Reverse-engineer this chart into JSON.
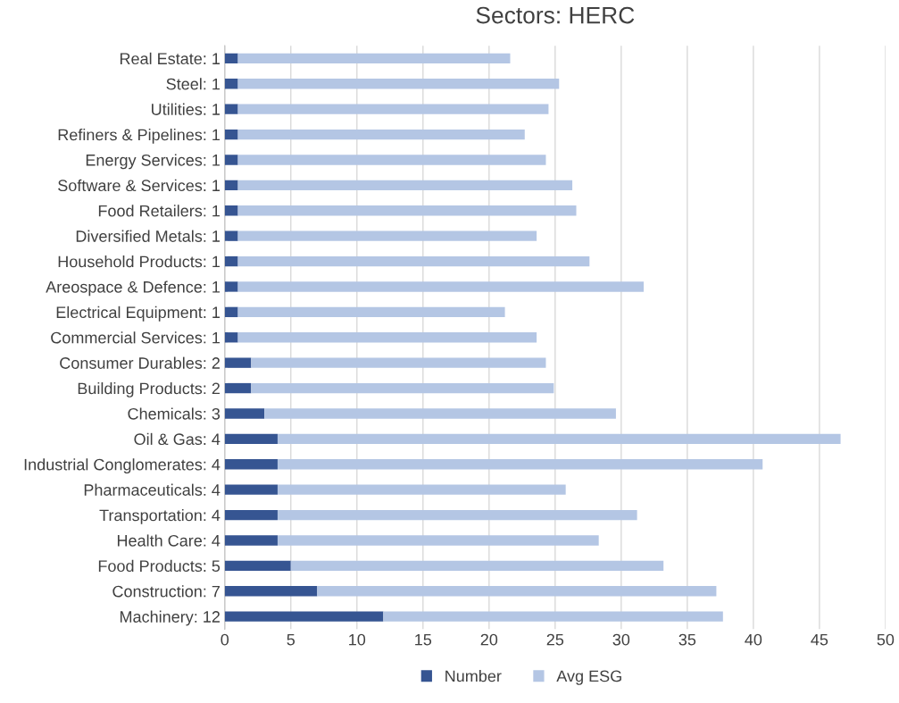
{
  "chart_data": {
    "type": "bar",
    "title": "Sectors: HERC",
    "orientation": "horizontal",
    "stacked": true,
    "categories": [
      "Real Estate: 1",
      "Steel: 1",
      "Utilities: 1",
      "Refiners & Pipelines: 1",
      "Energy Services: 1",
      "Software & Services: 1",
      "Food Retailers: 1",
      "Diversified Metals: 1",
      "Household Products: 1",
      "Areospace & Defence: 1",
      "Electrical Equipment: 1",
      "Commercial Services: 1",
      "Consumer Durables: 2",
      "Building Products: 2",
      "Chemicals: 3",
      "Oil & Gas: 4",
      "Industrial Conglomerates: 4",
      "Pharmaceuticals: 4",
      "Transportation: 4",
      "Health Care: 4",
      "Food Products: 5",
      "Construction: 7",
      "Machinery: 12"
    ],
    "series": [
      {
        "name": "Number",
        "color": "#365592",
        "values": [
          1,
          1,
          1,
          1,
          1,
          1,
          1,
          1,
          1,
          1,
          1,
          1,
          2,
          2,
          3,
          4,
          4,
          4,
          4,
          4,
          5,
          7,
          12
        ]
      },
      {
        "name": "Avg ESG",
        "color": "#b4c6e4",
        "values": [
          20.6,
          24.3,
          23.5,
          21.7,
          23.3,
          25.3,
          25.6,
          22.6,
          26.6,
          30.7,
          20.2,
          22.6,
          22.3,
          22.9,
          26.6,
          42.6,
          36.7,
          21.8,
          27.2,
          24.3,
          28.2,
          30.2,
          25.7
        ]
      }
    ],
    "xlim": [
      0,
      50
    ],
    "xticks": [
      0,
      5,
      10,
      15,
      20,
      25,
      30,
      35,
      40,
      45,
      50
    ],
    "grid": "x",
    "legend": "bottom"
  }
}
